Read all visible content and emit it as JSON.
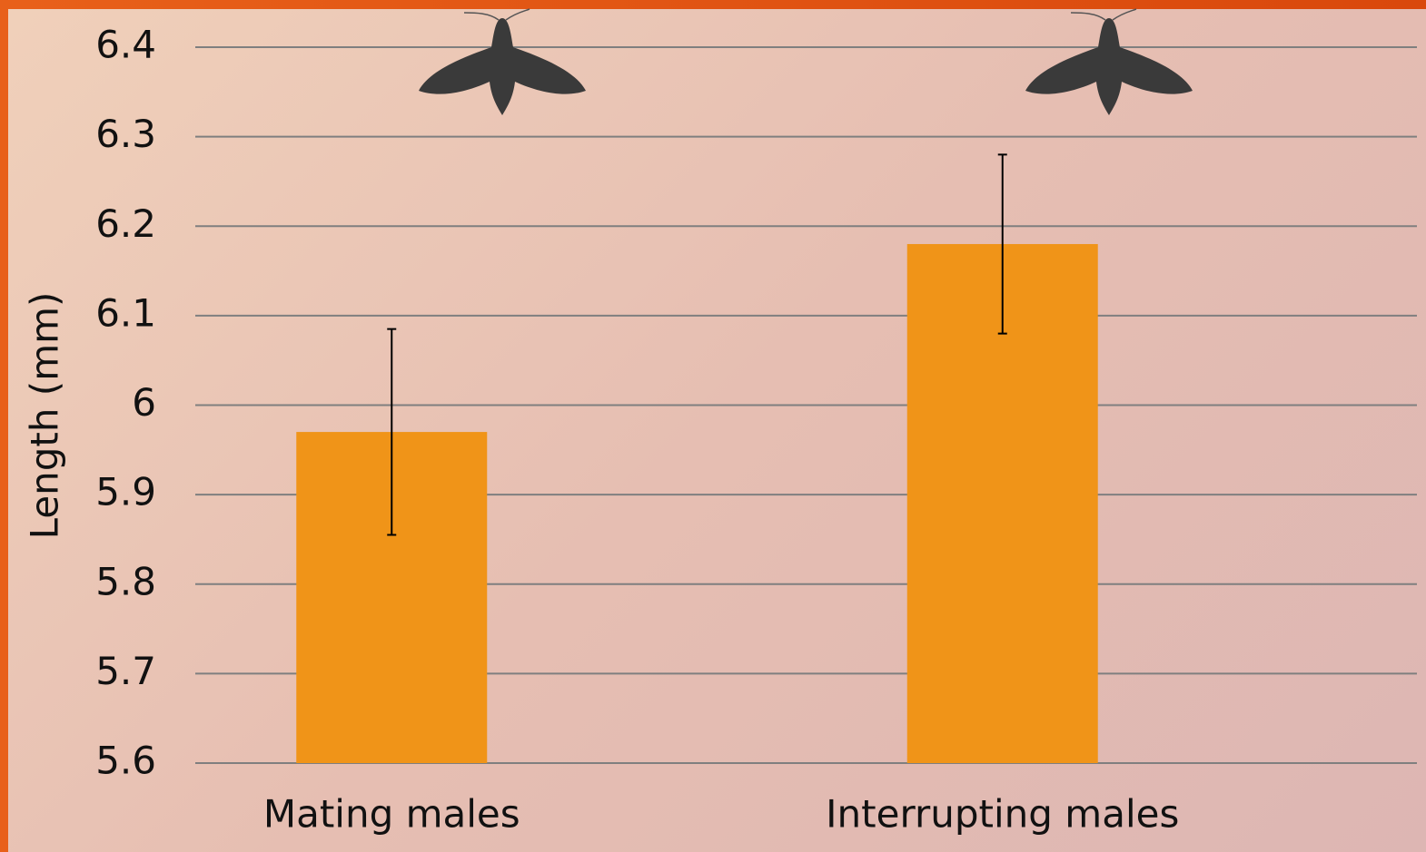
{
  "chart_data": {
    "type": "bar",
    "y_label": "Length (mm)",
    "categories": [
      "Mating males",
      "Interrupting males"
    ],
    "values": [
      5.97,
      6.18
    ],
    "errors": [
      0.115,
      0.1
    ],
    "color": "#f09418",
    "ylim": [
      5.6,
      6.4
    ],
    "yticks": [
      5.6,
      5.7,
      5.8,
      5.9,
      6,
      6.1,
      6.2,
      6.3,
      6.4
    ],
    "grid": true
  }
}
